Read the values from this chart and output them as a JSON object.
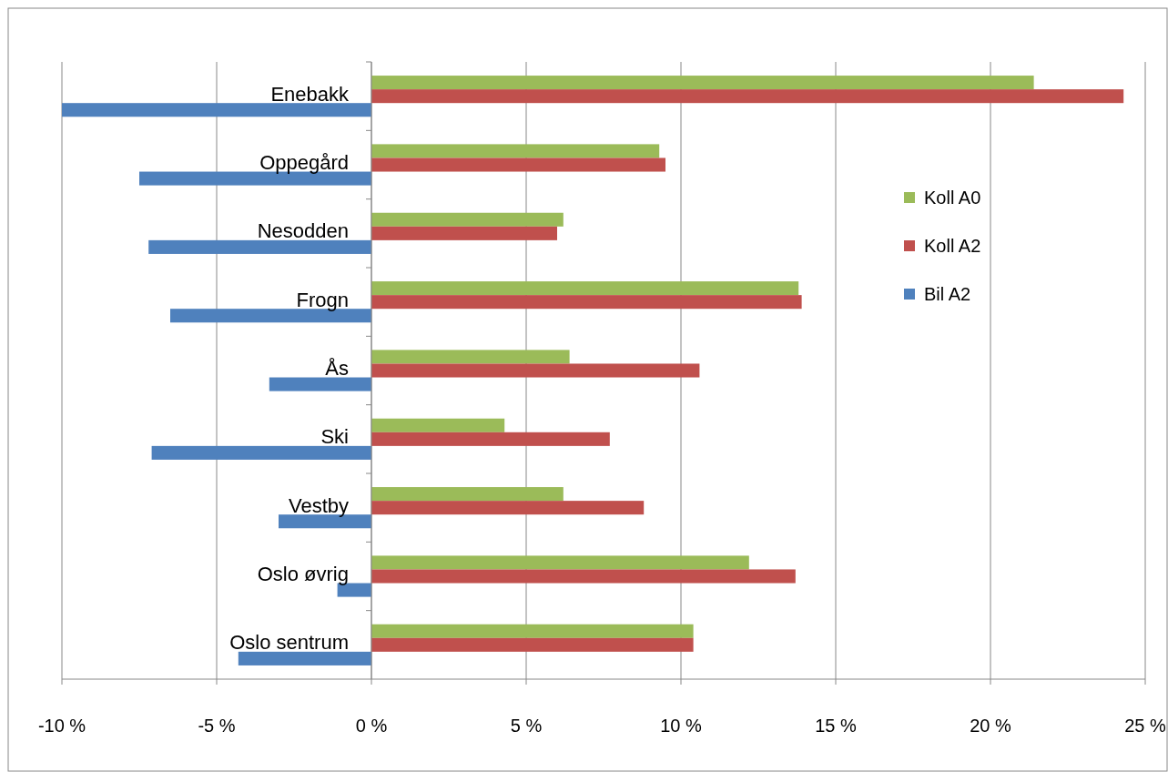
{
  "chart_data": {
    "type": "bar",
    "orientation": "horizontal",
    "categories": [
      "Enebakk",
      "Oppegård",
      "Nesodden",
      "Frogn",
      "Ås",
      "Ski",
      "Vestby",
      "Oslo øvrig",
      "Oslo sentrum"
    ],
    "series": [
      {
        "name": "Koll A0",
        "color": "#9bbb59",
        "values": [
          21.4,
          9.3,
          6.2,
          13.8,
          6.4,
          4.3,
          6.2,
          12.2,
          10.4
        ]
      },
      {
        "name": "Koll A2",
        "color": "#c0504d",
        "values": [
          24.3,
          9.5,
          6.0,
          13.9,
          10.6,
          7.7,
          8.8,
          13.7,
          10.4
        ]
      },
      {
        "name": "Bil A2",
        "color": "#4f81bd",
        "values": [
          -10.0,
          -7.5,
          -7.2,
          -6.5,
          -3.3,
          -7.1,
          -3.0,
          -1.1,
          -4.3
        ]
      }
    ],
    "xlim": [
      -10,
      25
    ],
    "xticks": [
      {
        "value": -10,
        "label": "-10 %"
      },
      {
        "value": -5,
        "label": "-5 %"
      },
      {
        "value": 0,
        "label": "0 %"
      },
      {
        "value": 5,
        "label": "5 %"
      },
      {
        "value": 10,
        "label": "10 %"
      },
      {
        "value": 15,
        "label": "15 %"
      },
      {
        "value": 20,
        "label": "20 %"
      },
      {
        "value": 25,
        "label": "25 %"
      }
    ],
    "grid": "x",
    "legend": "right"
  }
}
